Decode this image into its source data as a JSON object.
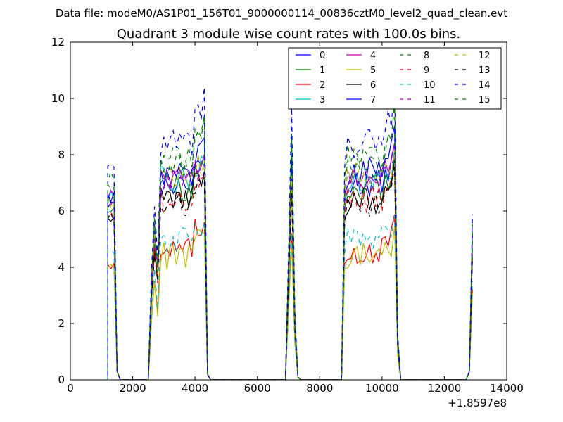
{
  "chart_data": {
    "type": "line",
    "suptitle": "Data file: modeM0/AS1P01_156T01_9000000114_00836cztM0_level2_quad_clean.evt",
    "title": "Quadrant 3 module wise count rates with 100.0s bins.",
    "xlabel": "",
    "ylabel": "",
    "x_offset_label": "+1.8597e8",
    "xlim": [
      0,
      14000
    ],
    "ylim": [
      0,
      12
    ],
    "x_ticks": [
      "0",
      "2000",
      "4000",
      "6000",
      "8000",
      "10000",
      "12000",
      "14000"
    ],
    "y_ticks": [
      "0",
      "2",
      "4",
      "6",
      "8",
      "10",
      "12"
    ],
    "legend_position": "top-right",
    "segments": [
      {
        "start": 1300,
        "end": 4300
      },
      {
        "start": 7000,
        "end": 7100
      },
      {
        "start": 8800,
        "end": 10400
      },
      {
        "start": 12900,
        "end": 12900
      }
    ],
    "series": [
      {
        "name": "0",
        "color": "#0000ff",
        "dash": "solid",
        "level": 7.0,
        "peak": 8.0
      },
      {
        "name": "1",
        "color": "#008000",
        "dash": "solid",
        "level": 6.8,
        "peak": 7.6
      },
      {
        "name": "2",
        "color": "#ff0000",
        "dash": "solid",
        "level": 4.6,
        "peak": 5.6
      },
      {
        "name": "3",
        "color": "#00bfbf",
        "dash": "solid",
        "level": 7.1,
        "peak": 7.8
      },
      {
        "name": "4",
        "color": "#bf00bf",
        "dash": "solid",
        "level": 7.3,
        "peak": 8.0
      },
      {
        "name": "5",
        "color": "#bfbf00",
        "dash": "solid",
        "level": 4.4,
        "peak": 5.2
      },
      {
        "name": "6",
        "color": "#000000",
        "dash": "solid",
        "level": 6.4,
        "peak": 7.4
      },
      {
        "name": "7",
        "color": "#0000ff",
        "dash": "solid",
        "level": 7.4,
        "peak": 8.6
      },
      {
        "name": "8",
        "color": "#008000",
        "dash": "dashed",
        "level": 7.9,
        "peak": 9.4
      },
      {
        "name": "9",
        "color": "#ff0000",
        "dash": "dashed",
        "level": 6.4,
        "peak": 7.2
      },
      {
        "name": "10",
        "color": "#00bfbf",
        "dash": "dashed",
        "level": 5.0,
        "peak": 5.6
      },
      {
        "name": "11",
        "color": "#bf00bf",
        "dash": "dashed",
        "level": 7.1,
        "peak": 7.6
      },
      {
        "name": "12",
        "color": "#bfbf00",
        "dash": "dashed",
        "level": 7.2,
        "peak": 7.8
      },
      {
        "name": "13",
        "color": "#000000",
        "dash": "dashed",
        "level": 6.2,
        "peak": 7.2
      },
      {
        "name": "14",
        "color": "#0000ff",
        "dash": "dashed",
        "level": 8.4,
        "peak": 10.4
      },
      {
        "name": "15",
        "color": "#008000",
        "dash": "dashed",
        "level": 7.6,
        "peak": 9.4
      }
    ]
  }
}
